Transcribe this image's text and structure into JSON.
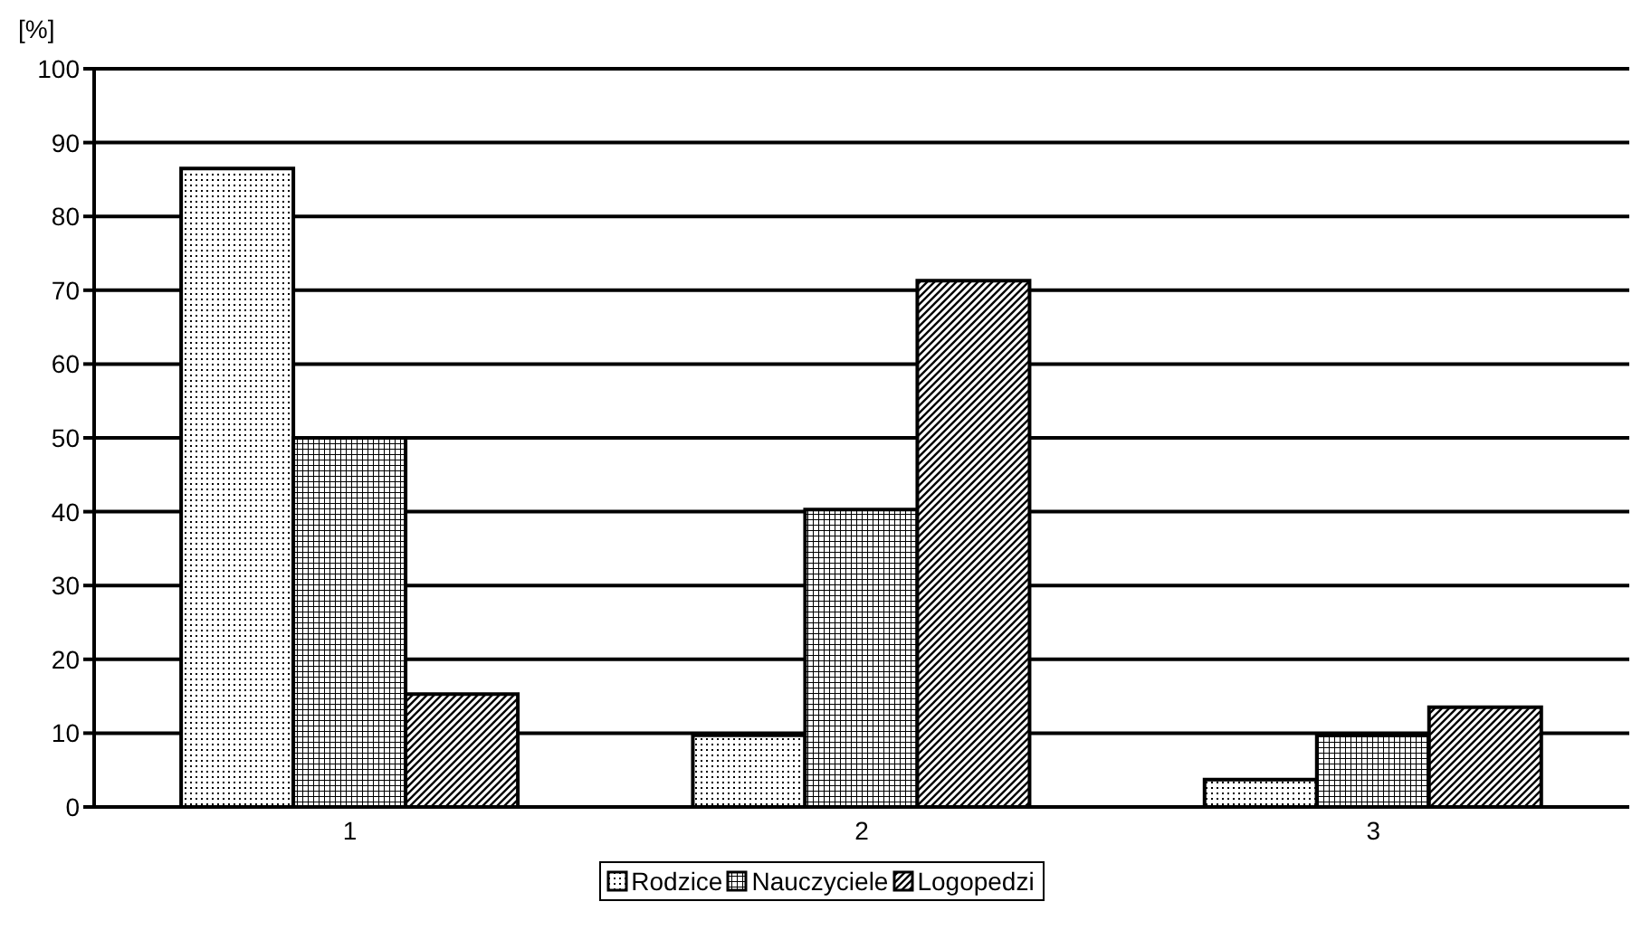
{
  "chart_data": {
    "type": "bar",
    "ylabel": "[%]",
    "categories": [
      "1",
      "2",
      "3"
    ],
    "series": [
      {
        "name": "Rodzice",
        "color": "#000000",
        "values": [
          86.5,
          9.7,
          3.7
        ]
      },
      {
        "name": "Nauczyciele",
        "color": "#000000",
        "values": [
          50,
          40.3,
          9.7
        ]
      },
      {
        "name": "Logopedzi",
        "color": "#000000",
        "values": [
          15.3,
          71.3,
          13.5
        ]
      }
    ],
    "ylim": [
      0,
      100
    ],
    "yticks": [
      0,
      10,
      20,
      30,
      40,
      50,
      60,
      70,
      80,
      90,
      100
    ],
    "grid": "y",
    "legend": "bottom"
  }
}
